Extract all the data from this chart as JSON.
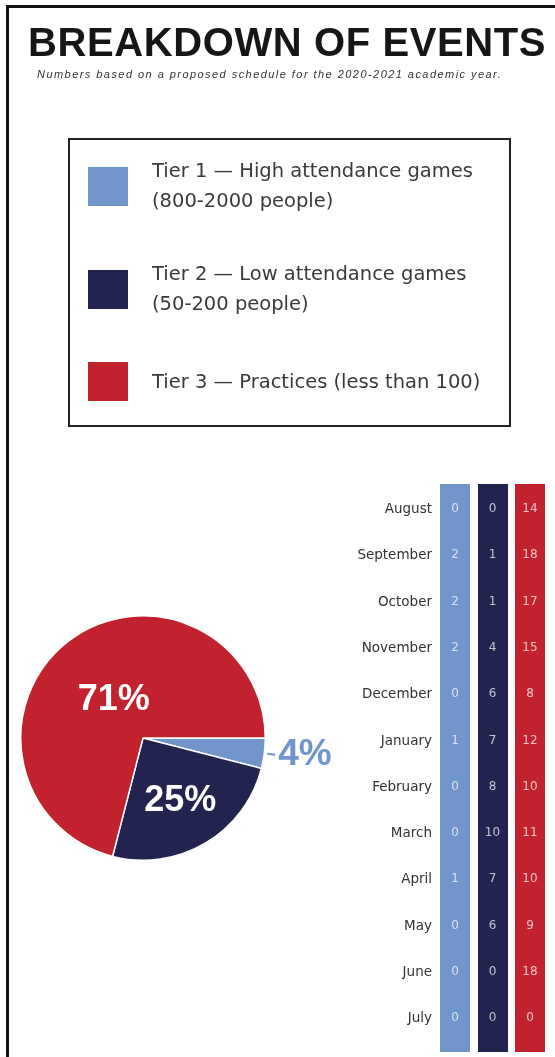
{
  "chart_data": [
    {
      "type": "pie",
      "title": "BREAKDOWN OF EVENTS",
      "subtitle": "Numbers based on a proposed schedule for the 2020-2021 academic year.",
      "categories": [
        "Tier 1 — High attendance games (800-2000 people)",
        "Tier 2 — Low attendance games (50-200 people)",
        "Tier 3 — Practices (less than 100)"
      ],
      "values": [
        4,
        25,
        71
      ],
      "colors": [
        "#6f95cb",
        "#23234f",
        "#c1222d"
      ],
      "value_labels": [
        "4%",
        "25%",
        "71%"
      ],
      "legend": "top"
    },
    {
      "type": "other",
      "categories": [
        "August",
        "September",
        "October",
        "November",
        "December",
        "January",
        "February",
        "March",
        "April",
        "May",
        "June",
        "July"
      ],
      "series": [
        {
          "color": "#6f95cb",
          "values": [
            0,
            2,
            2,
            2,
            0,
            1,
            0,
            0,
            1,
            0,
            0,
            0
          ]
        },
        {
          "color": "#23234f",
          "values": [
            0,
            1,
            1,
            4,
            6,
            7,
            8,
            10,
            7,
            6,
            0,
            0
          ]
        },
        {
          "color": "#c1222d",
          "values": [
            14,
            18,
            17,
            15,
            8,
            12,
            10,
            11,
            10,
            9,
            18,
            0
          ]
        }
      ],
      "data_labels": true
    }
  ]
}
